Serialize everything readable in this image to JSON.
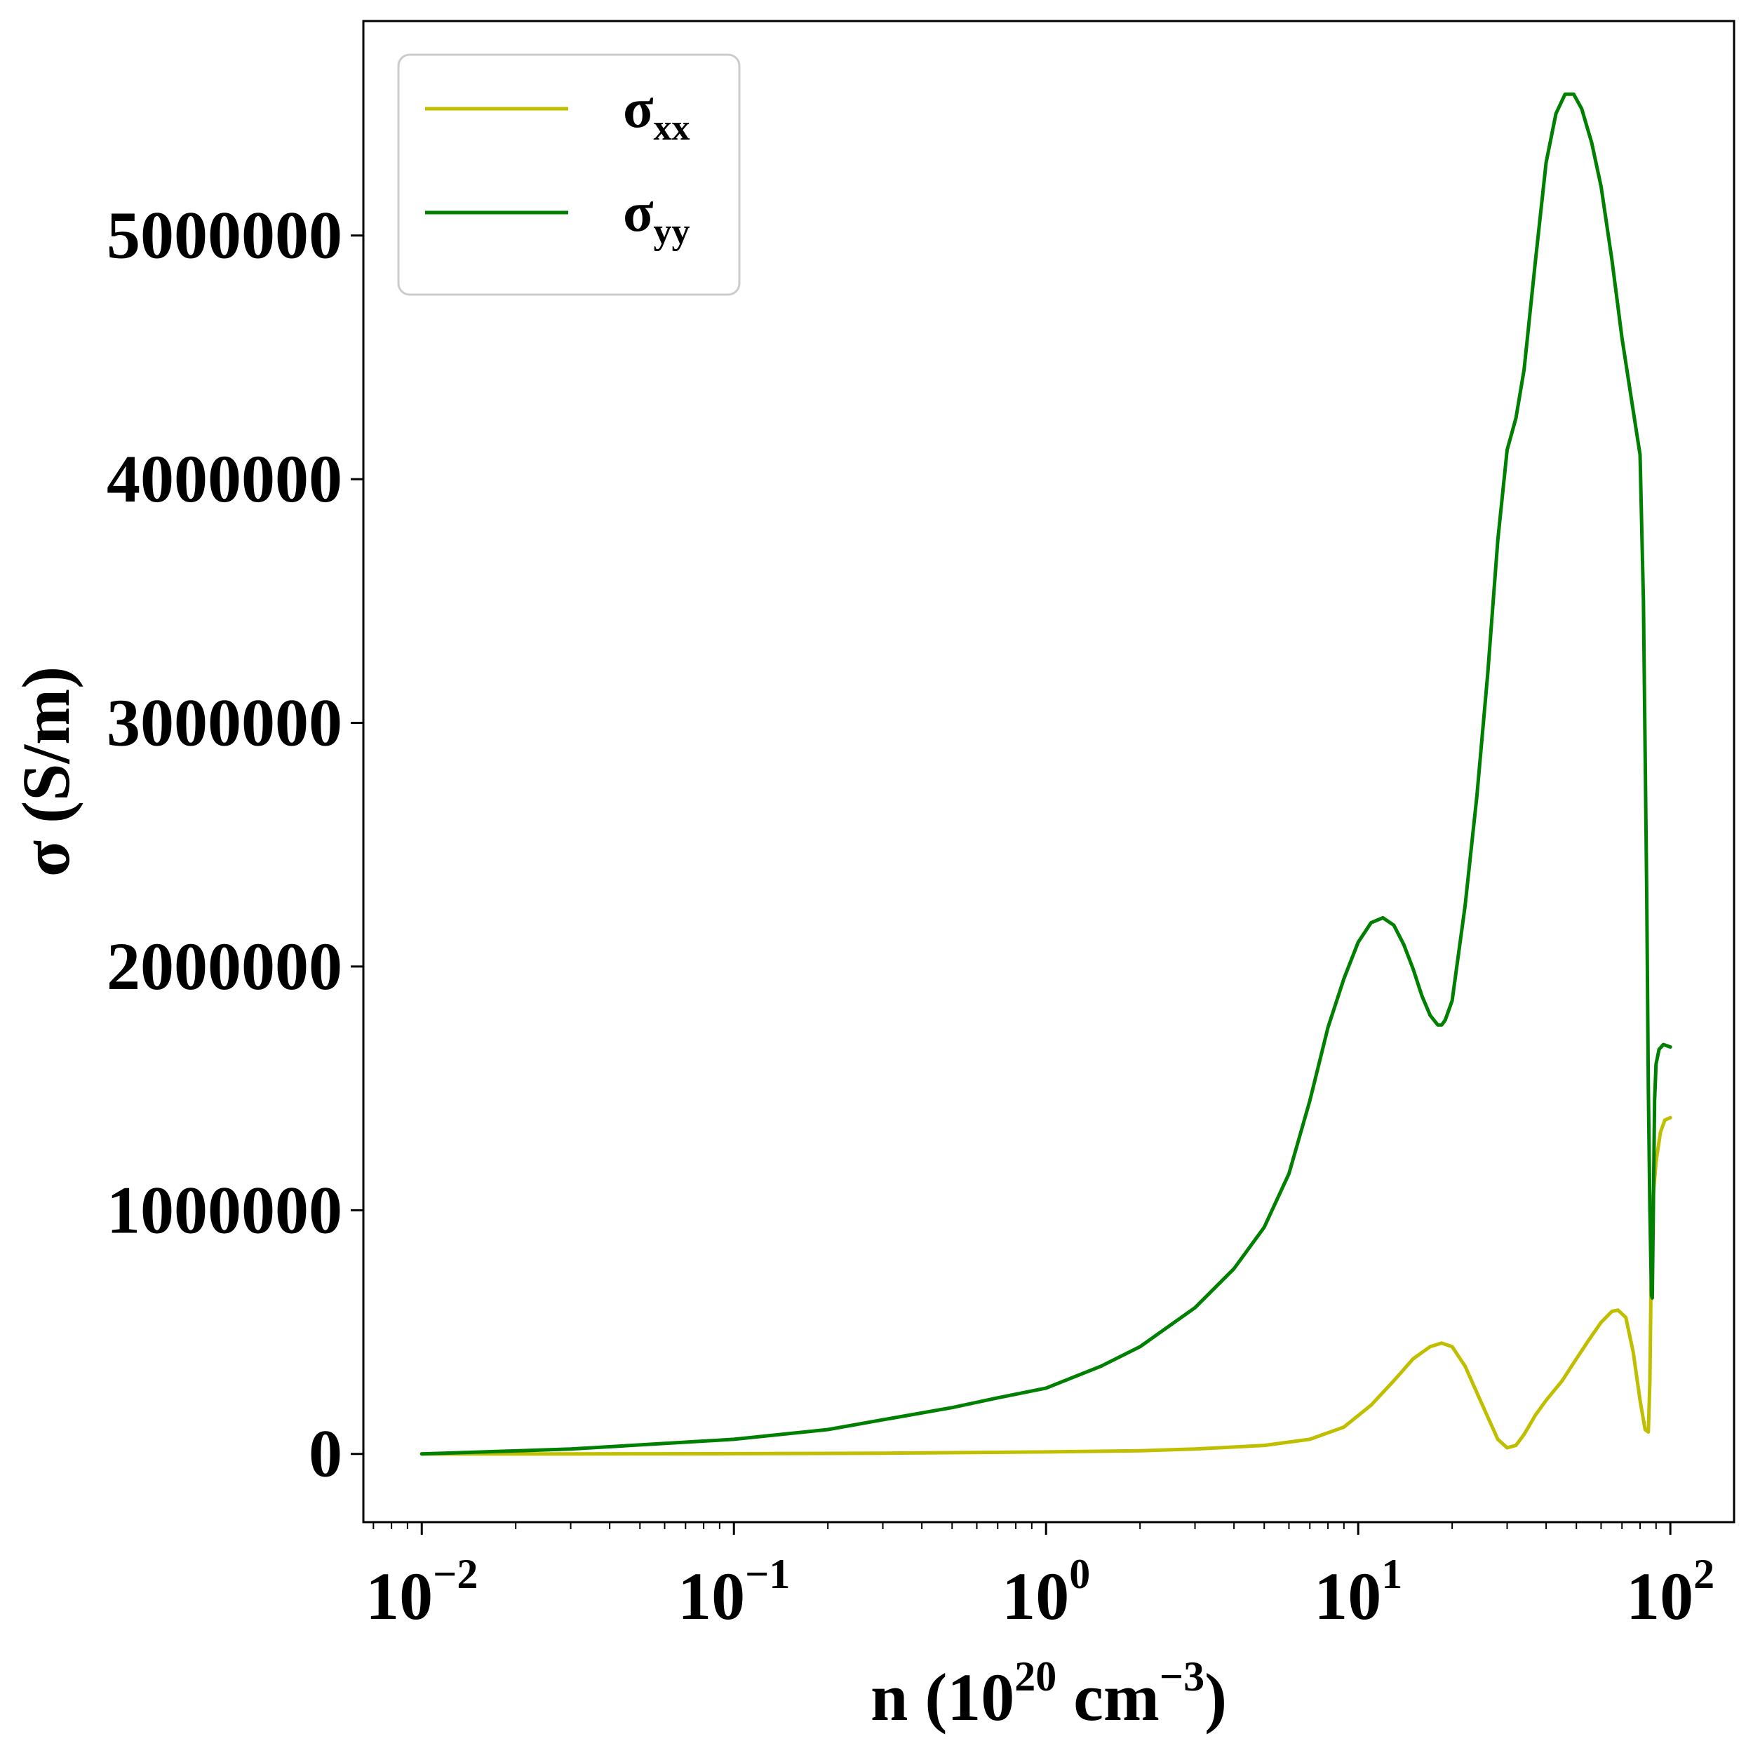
{
  "chart_data": {
    "type": "line",
    "xscale": "log",
    "xlim": [
      0.0065,
      160
    ],
    "ylim": [
      -280000,
      5880000
    ],
    "xlabel": {
      "base": "n (10",
      "sup": "20",
      "unit": " cm",
      "unit_sup": "−3",
      "close": ")"
    },
    "ylabel": "σ (S/m)",
    "x_ticks": [
      {
        "value": 0.01,
        "base": "10",
        "exp": "−2"
      },
      {
        "value": 0.1,
        "base": "10",
        "exp": "−1"
      },
      {
        "value": 1,
        "base": "10",
        "exp": "0"
      },
      {
        "value": 10,
        "base": "10",
        "exp": "1"
      },
      {
        "value": 100,
        "base": "10",
        "exp": "2"
      }
    ],
    "y_ticks": [
      {
        "value": 0,
        "label": "0"
      },
      {
        "value": 1000000,
        "label": "1000000"
      },
      {
        "value": 2000000,
        "label": "2000000"
      },
      {
        "value": 3000000,
        "label": "3000000"
      },
      {
        "value": 4000000,
        "label": "4000000"
      },
      {
        "value": 5000000,
        "label": "5000000"
      }
    ],
    "legend": {
      "position": "upper-left",
      "entries": [
        {
          "base": "σ",
          "sub": "xx",
          "color": "#bfbf00"
        },
        {
          "base": "σ",
          "sub": "yy",
          "color": "#008000"
        }
      ]
    },
    "grid": false,
    "series": [
      {
        "name": "σxx",
        "color": "#bfbf00",
        "x": [
          0.01,
          0.03,
          0.1,
          0.3,
          1,
          2,
          3,
          5,
          7,
          9,
          11,
          13,
          15,
          17,
          18.5,
          20,
          22,
          25,
          28,
          30,
          32,
          34,
          37,
          40,
          45,
          50,
          55,
          60,
          65,
          68,
          72,
          76,
          80,
          83,
          85,
          86,
          87,
          88,
          90,
          93,
          96,
          100
        ],
        "y": [
          0,
          200,
          1000,
          3000,
          8000,
          13000,
          20000,
          35000,
          60000,
          110000,
          200000,
          300000,
          390000,
          440000,
          455000,
          440000,
          360000,
          200000,
          60000,
          25000,
          35000,
          80000,
          160000,
          220000,
          300000,
          390000,
          470000,
          540000,
          585000,
          590000,
          560000,
          420000,
          220000,
          100000,
          90000,
          300000,
          850000,
          1050000,
          1200000,
          1320000,
          1370000,
          1380000
        ]
      },
      {
        "name": "σyy",
        "color": "#008000",
        "x": [
          0.01,
          0.03,
          0.1,
          0.2,
          0.3,
          0.5,
          0.7,
          1,
          1.5,
          2,
          3,
          4,
          5,
          6,
          7,
          8,
          9,
          10,
          11,
          12,
          13,
          14,
          15,
          16,
          17,
          18,
          18.5,
          19,
          20,
          22,
          24,
          26,
          28,
          30,
          32,
          34,
          37,
          40,
          43,
          46,
          49,
          52,
          56,
          60,
          65,
          70,
          75,
          80,
          82,
          84,
          85,
          86,
          87,
          87.5,
          88,
          89,
          90,
          92,
          95,
          100
        ],
        "y": [
          0,
          20000,
          60000,
          100000,
          140000,
          190000,
          230000,
          270000,
          360000,
          440000,
          600000,
          760000,
          930000,
          1150000,
          1450000,
          1750000,
          1950000,
          2100000,
          2180000,
          2200000,
          2170000,
          2090000,
          1990000,
          1880000,
          1800000,
          1760000,
          1760000,
          1780000,
          1860000,
          2250000,
          2700000,
          3200000,
          3750000,
          4120000,
          4250000,
          4450000,
          4900000,
          5300000,
          5500000,
          5580000,
          5580000,
          5520000,
          5380000,
          5200000,
          4900000,
          4580000,
          4330000,
          4100000,
          3500000,
          2300000,
          1500000,
          1000000,
          650000,
          640000,
          900000,
          1450000,
          1600000,
          1660000,
          1680000,
          1670000
        ]
      }
    ]
  }
}
